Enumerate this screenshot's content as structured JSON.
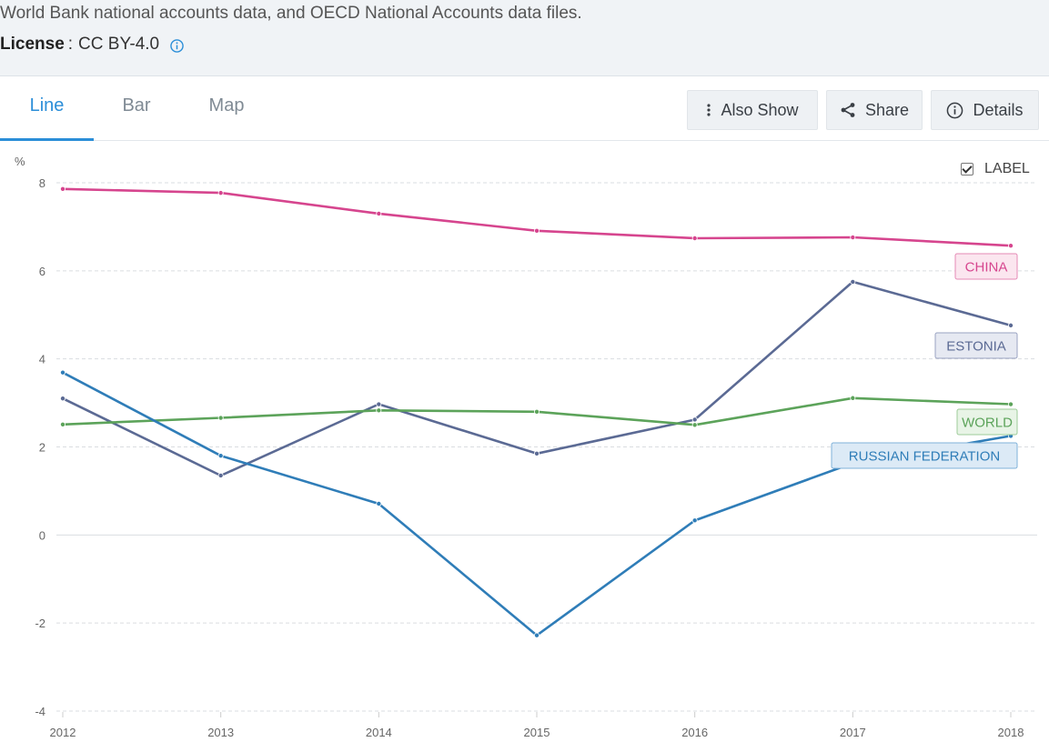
{
  "source": {
    "text": "World Bank national accounts data, and OECD National Accounts data files."
  },
  "license": {
    "key": "License",
    "separator": ":",
    "value": "CC BY-4.0",
    "icon": "info-icon"
  },
  "tabs": [
    {
      "label": "Line",
      "active": true
    },
    {
      "label": "Bar",
      "active": false
    },
    {
      "label": "Map",
      "active": false
    }
  ],
  "toolbar": {
    "also_show": {
      "label": "Also Show",
      "icon": "vertical-dots-icon"
    },
    "share": {
      "label": "Share",
      "icon": "share-icon"
    },
    "details": {
      "label": "Details",
      "icon": "info-circle-icon"
    }
  },
  "label_toggle": {
    "label": "LABEL",
    "checked": true
  },
  "chart_data": {
    "type": "line",
    "ylabel": "%",
    "ylim": [
      -4,
      8
    ],
    "yticks": [
      8,
      6,
      4,
      2,
      0,
      -2,
      -4
    ],
    "x": [
      2012,
      2013,
      2014,
      2015,
      2016,
      2017,
      2018
    ],
    "grid": true,
    "series": [
      {
        "name": "CHINA",
        "color": "#d6458e",
        "label_fill": "#fbe6ef",
        "label_stroke": "#e58ab6",
        "values": [
          7.86,
          7.77,
          7.3,
          6.91,
          6.74,
          6.76,
          6.57
        ]
      },
      {
        "name": "ESTONIA",
        "color": "#5b6a94",
        "label_fill": "#e6e9f2",
        "label_stroke": "#9aa3c2",
        "values": [
          3.1,
          1.35,
          2.97,
          1.85,
          2.62,
          5.75,
          4.76
        ]
      },
      {
        "name": "WORLD",
        "color": "#5ca35a",
        "label_fill": "#e8f4e6",
        "label_stroke": "#9ccb98",
        "values": [
          2.51,
          2.66,
          2.83,
          2.8,
          2.5,
          3.11,
          2.97
        ]
      },
      {
        "name": "RUSSIAN FEDERATION",
        "color": "#2f7db8",
        "label_fill": "#dceaf6",
        "label_stroke": "#7fb1d9",
        "values": [
          3.69,
          1.8,
          0.71,
          -2.28,
          0.33,
          1.63,
          2.25
        ]
      }
    ]
  }
}
